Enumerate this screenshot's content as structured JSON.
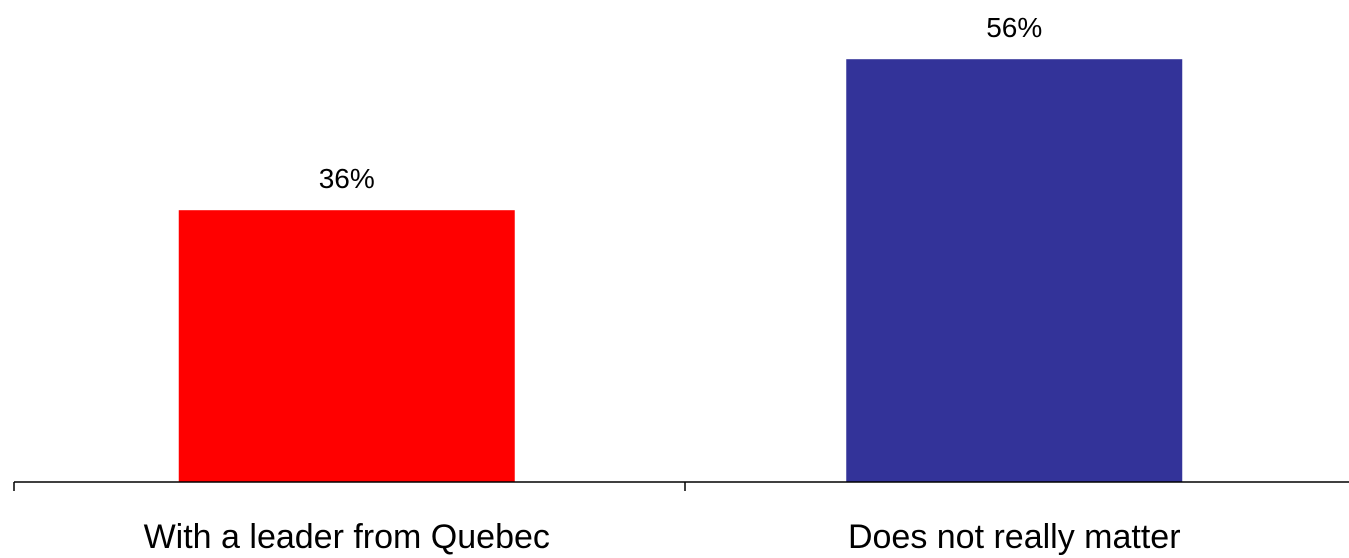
{
  "chart_data": {
    "type": "bar",
    "categories": [
      "With a leader from Quebec",
      "Does not really matter"
    ],
    "values": [
      36,
      56
    ],
    "value_labels": [
      "36%",
      "56%"
    ],
    "colors": [
      "#ff0000",
      "#333399"
    ],
    "title": "",
    "xlabel": "",
    "ylabel": "",
    "ylim": [
      0,
      60
    ],
    "grid": false,
    "legend": "none"
  }
}
